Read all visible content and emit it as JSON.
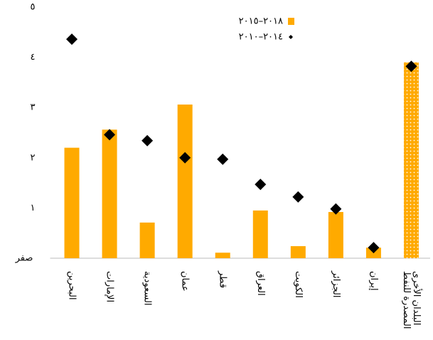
{
  "chart_data": {
    "type": "bar",
    "categories": [
      "البحرين",
      "الإمارات",
      "السعودية",
      "عمان",
      "قطر",
      "العراق",
      "الكويت",
      "الجزائر",
      "إيران",
      [
        "البلدان الأخرى",
        "المصدرة للنفط"
      ]
    ],
    "series": [
      {
        "name": "٢٠١٨–٢٠١٥",
        "type": "bar",
        "color": "#ffaa00",
        "values": [
          2.2,
          2.56,
          0.71,
          3.06,
          0.11,
          0.95,
          0.24,
          0.92,
          0.21,
          3.9
        ]
      },
      {
        "name": "٢٠١٤–٢٠١٠",
        "type": "scatter",
        "color": "#000000",
        "values": [
          4.36,
          2.46,
          2.34,
          2.0,
          1.97,
          1.47,
          1.22,
          0.98,
          0.21,
          3.82
        ]
      }
    ],
    "dotted_bar": 9,
    "ylim": [
      0,
      5
    ],
    "yticks": [
      {
        "value": 0,
        "label": "صفر"
      },
      {
        "value": 1,
        "label": "١"
      },
      {
        "value": 2,
        "label": "٢"
      },
      {
        "value": 3,
        "label": "٣"
      },
      {
        "value": 4,
        "label": "٤"
      },
      {
        "value": 5,
        "label": "٥"
      }
    ]
  }
}
